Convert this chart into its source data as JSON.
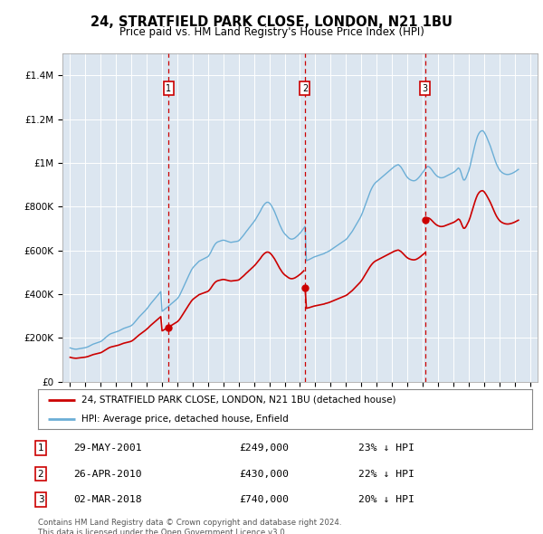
{
  "title": "24, STRATFIELD PARK CLOSE, LONDON, N21 1BU",
  "subtitle": "Price paid vs. HM Land Registry's House Price Index (HPI)",
  "background_color": "#dce6f0",
  "plot_bg_color": "#dce6f0",
  "legend_label_red": "24, STRATFIELD PARK CLOSE, LONDON, N21 1BU (detached house)",
  "legend_label_blue": "HPI: Average price, detached house, Enfield",
  "footnote": "Contains HM Land Registry data © Crown copyright and database right 2024.\nThis data is licensed under the Open Government Licence v3.0.",
  "transactions": [
    {
      "num": 1,
      "date": "29-MAY-2001",
      "price": 249000,
      "hpi_diff": "23% ↓ HPI",
      "x": 2001.41
    },
    {
      "num": 2,
      "date": "26-APR-2010",
      "price": 430000,
      "hpi_diff": "22% ↓ HPI",
      "x": 2010.32
    },
    {
      "num": 3,
      "date": "02-MAR-2018",
      "price": 740000,
      "hpi_diff": "20% ↓ HPI",
      "x": 2018.17
    }
  ],
  "ylim": [
    0,
    1500000
  ],
  "yticks": [
    0,
    200000,
    400000,
    600000,
    800000,
    1000000,
    1200000,
    1400000
  ],
  "ytick_labels": [
    "£0",
    "£200K",
    "£400K",
    "£600K",
    "£800K",
    "£1M",
    "£1.2M",
    "£1.4M"
  ],
  "xlim": [
    1994.5,
    2025.5
  ],
  "red_line_color": "#cc0000",
  "blue_line_color": "#6baed6",
  "marker_box_color": "#cc0000",
  "dashed_line_color": "#cc0000",
  "hpi_x_start": 1995.0,
  "hpi_y": [
    155000,
    153000,
    151000,
    150000,
    149000,
    149000,
    150000,
    151000,
    152000,
    153000,
    154000,
    155000,
    156000,
    158000,
    160000,
    163000,
    166000,
    169000,
    172000,
    174000,
    176000,
    178000,
    180000,
    182000,
    184000,
    188000,
    193000,
    198000,
    203000,
    208000,
    213000,
    217000,
    220000,
    222000,
    224000,
    226000,
    228000,
    230000,
    232000,
    235000,
    238000,
    241000,
    244000,
    246000,
    248000,
    250000,
    252000,
    254000,
    257000,
    262000,
    268000,
    275000,
    282000,
    289000,
    296000,
    302000,
    308000,
    314000,
    320000,
    326000,
    333000,
    340000,
    348000,
    356000,
    363000,
    370000,
    377000,
    384000,
    391000,
    398000,
    405000,
    412000,
    322000,
    326000,
    331000,
    336000,
    340000,
    345000,
    350000,
    355000,
    360000,
    365000,
    370000,
    375000,
    380000,
    388000,
    398000,
    410000,
    423000,
    436000,
    449000,
    462000,
    475000,
    487000,
    499000,
    511000,
    520000,
    527000,
    533000,
    539000,
    545000,
    551000,
    554000,
    557000,
    560000,
    563000,
    566000,
    569000,
    572000,
    580000,
    590000,
    602000,
    614000,
    624000,
    632000,
    637000,
    640000,
    642000,
    644000,
    646000,
    647000,
    646000,
    644000,
    642000,
    640000,
    638000,
    637000,
    638000,
    639000,
    640000,
    641000,
    642000,
    644000,
    650000,
    657000,
    664000,
    671000,
    679000,
    687000,
    694000,
    702000,
    709000,
    717000,
    724000,
    732000,
    740000,
    750000,
    760000,
    770000,
    780000,
    792000,
    802000,
    810000,
    816000,
    820000,
    820000,
    817000,
    810000,
    801000,
    790000,
    778000,
    764000,
    749000,
    734000,
    719000,
    706000,
    694000,
    684000,
    676000,
    670000,
    664000,
    658000,
    654000,
    652000,
    652000,
    654000,
    657000,
    662000,
    667000,
    673000,
    679000,
    686000,
    694000,
    702000,
    710000,
    553000,
    556000,
    558000,
    561000,
    564000,
    567000,
    570000,
    572000,
    574000,
    576000,
    578000,
    580000,
    582000,
    584000,
    586000,
    590000,
    592000,
    595000,
    598000,
    602000,
    606000,
    610000,
    614000,
    618000,
    622000,
    626000,
    630000,
    634000,
    638000,
    642000,
    646000,
    650000,
    656000,
    664000,
    672000,
    680000,
    688000,
    698000,
    708000,
    718000,
    728000,
    738000,
    748000,
    760000,
    774000,
    790000,
    806000,
    822000,
    838000,
    854000,
    869000,
    882000,
    893000,
    902000,
    909000,
    914000,
    919000,
    924000,
    929000,
    934000,
    939000,
    944000,
    949000,
    954000,
    959000,
    964000,
    969000,
    974000,
    979000,
    984000,
    987000,
    990000,
    992000,
    987000,
    981000,
    972000,
    962000,
    952000,
    942000,
    934000,
    928000,
    924000,
    921000,
    919000,
    918000,
    919000,
    922000,
    927000,
    933000,
    940000,
    948000,
    956000,
    964000,
    972000,
    980000,
    984000,
    982000,
    977000,
    970000,
    962000,
    954000,
    947000,
    941000,
    937000,
    934000,
    932000,
    932000,
    933000,
    935000,
    938000,
    941000,
    944000,
    947000,
    950000,
    953000,
    956000,
    960000,
    965000,
    971000,
    977000,
    972000,
    957000,
    937000,
    922000,
    922000,
    932000,
    947000,
    962000,
    982000,
    1007000,
    1032000,
    1057000,
    1082000,
    1104000,
    1122000,
    1134000,
    1142000,
    1146000,
    1147000,
    1142000,
    1132000,
    1120000,
    1106000,
    1092000,
    1077000,
    1060000,
    1042000,
    1024000,
    1007000,
    992000,
    980000,
    970000,
    962000,
    957000,
    953000,
    950000,
    948000,
    947000,
    947000,
    948000,
    950000,
    952000,
    955000,
    958000,
    962000,
    966000,
    970000
  ]
}
